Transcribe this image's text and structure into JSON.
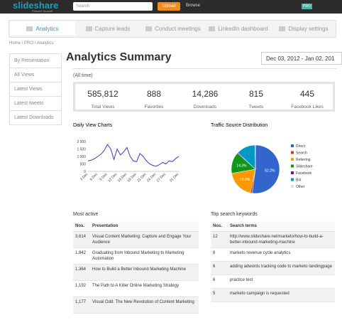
{
  "header": {
    "logo": "slideshare",
    "tagline": "Present Yourself",
    "search": "Search",
    "upload": "Upload",
    "browse": "Browse",
    "badge": "PRO"
  },
  "tabs": [
    "Analytics",
    "Capture leads",
    "Conduct meetings",
    "LinkedIn dashboard",
    "Display settings"
  ],
  "breadcrumb": [
    "Home",
    "PRO",
    "Analytics"
  ],
  "sidebar": [
    "By Presentation",
    "All Views",
    "Latest Views",
    "Latest tweets",
    "Latest Downloads"
  ],
  "title": "Analytics Summary",
  "date_range": "Dec 03, 2012 - Jan 02, 201",
  "period": "(All time)",
  "stats": [
    {
      "value": "585,812",
      "label": "Total Views"
    },
    {
      "value": "888",
      "label": "Favorites"
    },
    {
      "value": "14,286",
      "label": "Downloads"
    },
    {
      "value": "815",
      "label": "Tweets"
    },
    {
      "value": "445",
      "label": "Facebook Likes"
    }
  ],
  "daily_views": {
    "type": "line",
    "title": "Daily View Charts",
    "color": "#4a2fd6",
    "categories": [
      "3 Dec",
      null,
      null,
      "6 Dec",
      null,
      null,
      "9 Dec",
      null,
      null,
      "12 Dec",
      null,
      null,
      "15 Dec",
      null,
      null,
      "18 Dec",
      null,
      null,
      "21 Dec",
      null,
      null,
      "24 Dec",
      null,
      null,
      "27 Dec",
      null,
      null,
      null,
      "31 Dec"
    ],
    "values": [
      700,
      750,
      850,
      1000,
      1150,
      1400,
      1800,
      1500,
      800,
      1500,
      1100,
      1300,
      1600,
      1000,
      700,
      650,
      1200,
      1000,
      700,
      500,
      400,
      350,
      450,
      600,
      500,
      700,
      650,
      850,
      1000
    ],
    "ylim": [
      0,
      2000
    ],
    "yticks": [
      0,
      500,
      {
        "value": 1000,
        "label": "1 000"
      },
      {
        "value": 1500,
        "label": "1 500"
      },
      {
        "value": 2000,
        "label": "2 000"
      }
    ]
  },
  "traffic": {
    "type": "pie",
    "title": "Traffic Source Distribution",
    "categories": [
      "Direct",
      "Search",
      "Referring",
      "Slideshare",
      "Facebook",
      "Bot",
      "Other"
    ],
    "values": [
      52.2,
      1.2,
      18.9,
      14.3,
      0.5,
      12.6,
      0.3
    ],
    "value_labels": [
      "52.2%",
      null,
      "18.9%",
      "14.3%",
      null,
      null,
      null
    ],
    "colors": [
      "#3366cc",
      "#dc3912",
      "#ff9900",
      "#109618",
      "#990099",
      "#0099c6",
      "#dddddd"
    ]
  },
  "most_active": {
    "title": "Most active",
    "columns": [
      "Nos.",
      "Presentation"
    ],
    "rows": [
      [
        "3,614",
        "Visual Content Marketing: Capture and Engage Your Audience"
      ],
      [
        "1,842",
        "Graduating from Inbound Marketing to Marketing Automation"
      ],
      [
        "1,364",
        "How to Build a Better Inbound Marketing Machine"
      ],
      [
        "1,192",
        "The Path to A Killer Online Marketing Strategy"
      ],
      [
        "1,177",
        "Visual Odd: The New Revolution of Content Marketing"
      ]
    ]
  },
  "keywords": {
    "title": "Top search keywords",
    "columns": [
      "Nos.",
      "Search terms"
    ],
    "rows": [
      [
        "12",
        "http://www.slideshare.net/marketo/how-to-build-a-better-inbound-marketing-machine"
      ],
      [
        "8",
        "marketo revenue cycle analytics"
      ],
      [
        "6",
        "adding adwords tracking code to marketo landingpage"
      ],
      [
        "6",
        "practice test"
      ],
      [
        "5",
        "marketo campaign is requested"
      ]
    ]
  }
}
